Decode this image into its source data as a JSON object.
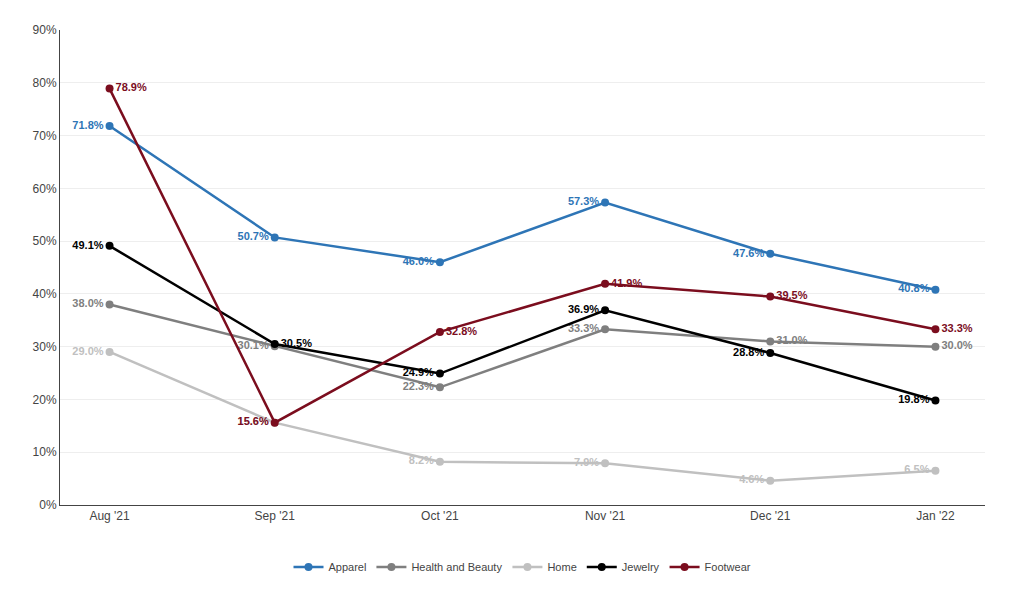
{
  "chart_data": {
    "type": "line",
    "categories": [
      "Aug '21",
      "Sep '21",
      "Oct '21",
      "Nov '21",
      "Dec '21",
      "Jan '22"
    ],
    "series": [
      {
        "name": "Apparel",
        "color": "#2E75B6",
        "marker": "circle",
        "values": [
          71.8,
          50.7,
          46.0,
          57.3,
          47.6,
          40.8
        ],
        "value_labels": [
          "71.8%",
          "50.7%",
          "46.0%",
          "57.3%",
          "47.6%",
          "40.8%"
        ]
      },
      {
        "name": "Health and Beauty",
        "color": "#7F7F7F",
        "marker": "circle",
        "values": [
          38.0,
          30.1,
          22.3,
          33.3,
          31.0,
          30.0
        ],
        "value_labels": [
          "38.0%",
          "30.1%",
          "22.3%",
          "33.3%",
          "31.0%",
          "30.0%"
        ]
      },
      {
        "name": "Home",
        "color": "#C0C0C0",
        "marker": "circle",
        "values": [
          29.0,
          15.6,
          8.2,
          7.9,
          4.6,
          6.5
        ],
        "value_labels": [
          "29.0%",
          "15.6%",
          "8.2%",
          "7.9%",
          "4.6%",
          "6.5%"
        ]
      },
      {
        "name": "Jewelry",
        "color": "#000000",
        "marker": "circle",
        "values": [
          49.1,
          30.5,
          24.9,
          36.9,
          28.8,
          19.8
        ],
        "value_labels": [
          "49.1%",
          "30.5%",
          "24.9%",
          "36.9%",
          "28.8%",
          "19.8%"
        ]
      },
      {
        "name": "Footwear",
        "color": "#7B0D1E",
        "marker": "circle",
        "values": [
          78.9,
          15.6,
          32.8,
          41.9,
          39.5,
          33.3
        ],
        "value_labels": [
          "78.9%",
          "15.6%",
          "32.8%",
          "41.9%",
          "39.5%",
          "33.3%"
        ]
      }
    ],
    "ylim": [
      0,
      90
    ],
    "yticks": [
      {
        "value": 0,
        "label": "0%"
      },
      {
        "value": 10,
        "label": "10%"
      },
      {
        "value": 20,
        "label": "20%"
      },
      {
        "value": 30,
        "label": "30%"
      },
      {
        "value": 40,
        "label": "40%"
      },
      {
        "value": 50,
        "label": "50%"
      },
      {
        "value": 60,
        "label": "60%"
      },
      {
        "value": 70,
        "label": "70%"
      },
      {
        "value": 80,
        "label": "80%"
      },
      {
        "value": 90,
        "label": "90%"
      }
    ],
    "grid": true,
    "legend": "bottom",
    "data_labels": true
  }
}
